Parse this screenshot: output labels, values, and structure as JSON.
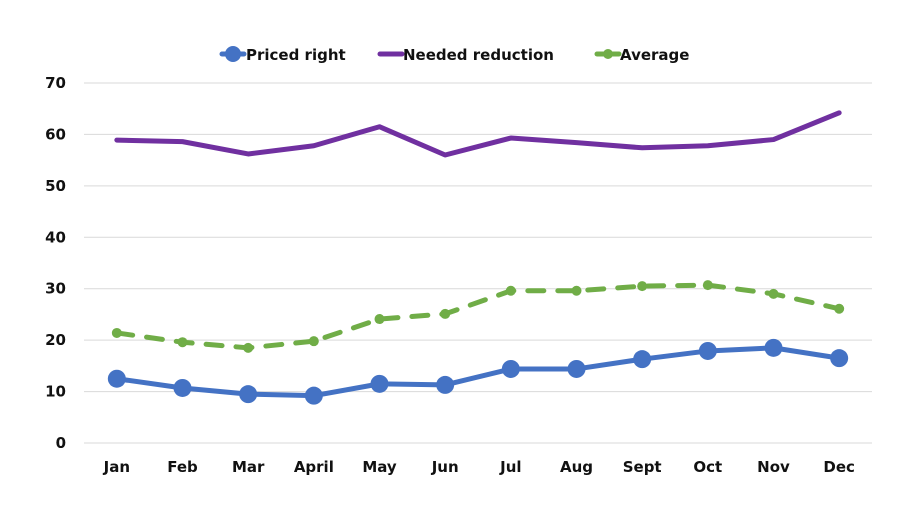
{
  "chart_data": {
    "type": "line",
    "title": "",
    "xlabel": "",
    "ylabel": "",
    "categories": [
      "Jan",
      "Feb",
      "Mar",
      "April",
      "May",
      "Jun",
      "Jul",
      "Aug",
      "Sept",
      "Oct",
      "Nov",
      "Dec"
    ],
    "ylim": [
      0,
      70
    ],
    "yticks": [
      0,
      10,
      20,
      30,
      40,
      50,
      60,
      70
    ],
    "grid": true,
    "legend_position": "top-center",
    "series": [
      {
        "name": "Priced right",
        "color": "#4472C4",
        "style": "solid",
        "markers": true,
        "values": [
          12.5,
          10.7,
          9.5,
          9.2,
          11.5,
          11.3,
          14.4,
          14.4,
          16.3,
          17.9,
          18.5,
          16.5
        ]
      },
      {
        "name": "Needed reduction",
        "color": "#7030A0",
        "style": "solid",
        "markers": false,
        "values": [
          58.9,
          58.6,
          56.2,
          57.8,
          61.5,
          56.0,
          59.3,
          58.4,
          57.4,
          57.8,
          59.0,
          64.2
        ]
      },
      {
        "name": "Average",
        "color": "#70AD47",
        "style": "dashed",
        "markers": true,
        "values": [
          21.4,
          19.6,
          18.5,
          19.8,
          24.1,
          25.1,
          29.6,
          29.6,
          30.5,
          30.7,
          29.0,
          26.1
        ]
      }
    ]
  }
}
